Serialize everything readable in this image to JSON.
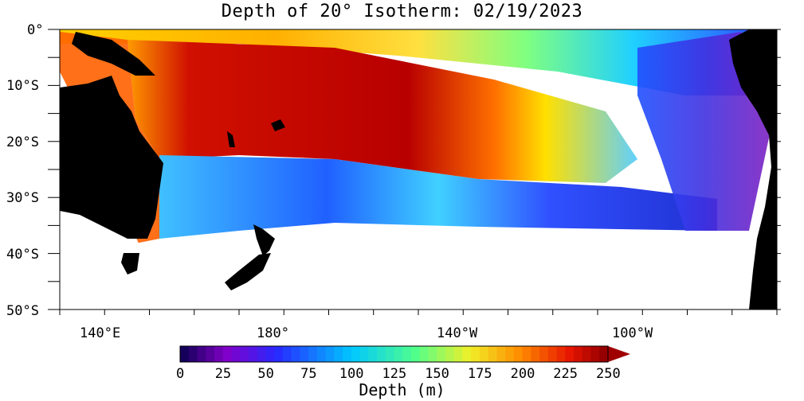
{
  "title": "Depth of 20° Isotherm: 02/19/2023",
  "lat_labels": [
    "0°",
    "10°S",
    "20°S",
    "30°S",
    "40°S",
    "50°S"
  ],
  "lon_labels": [
    "140°E",
    "180°",
    "140°W",
    "100°W"
  ],
  "colorbar": {
    "title": "Depth (m)",
    "ticks": [
      "0",
      "25",
      "50",
      "75",
      "100",
      "125",
      "150",
      "175",
      "200",
      "225",
      "250"
    ],
    "min": 0,
    "max": 250,
    "step": 5
  },
  "colors": {
    "land": "#000000",
    "no_data": "#ffffff",
    "deep_warm": "#a00000",
    "shallow": "#2020c0"
  }
}
